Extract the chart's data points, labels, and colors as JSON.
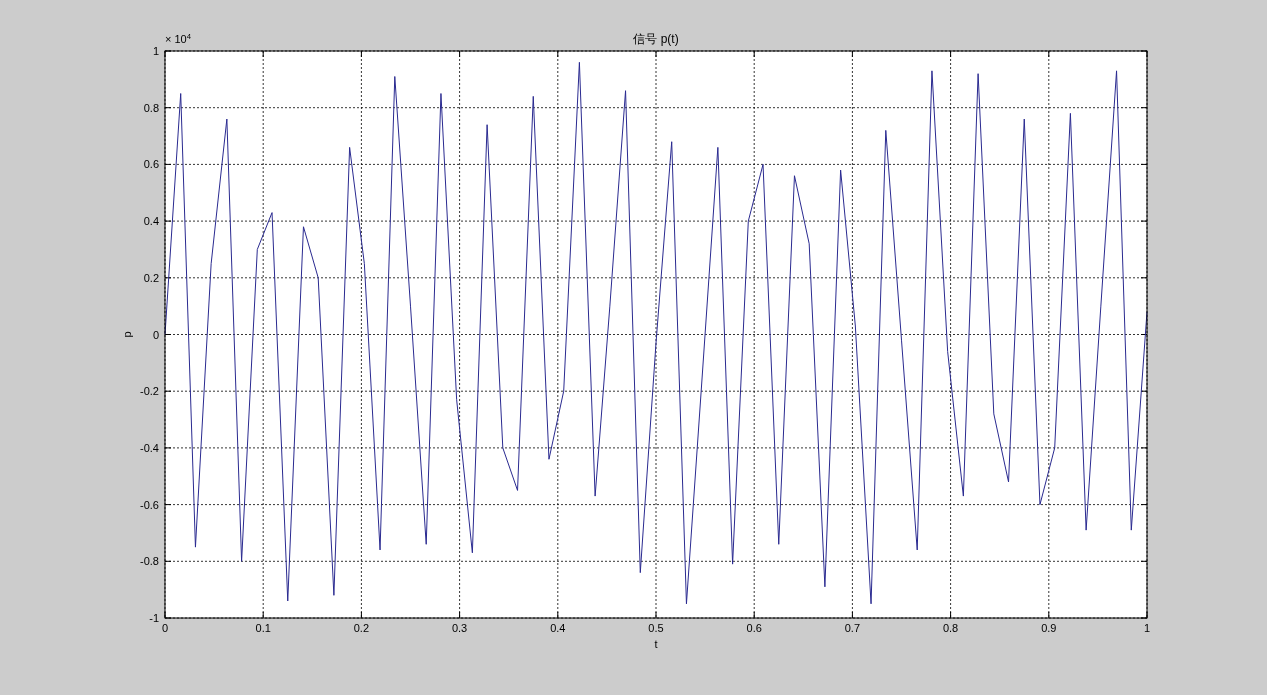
{
  "chart_data": {
    "type": "line",
    "title": "信号 p(t)",
    "xlabel": "t",
    "ylabel": "p",
    "annotations": [
      "× 10$^{4}$"
    ],
    "x": [
      0,
      0.016,
      0.031,
      0.047,
      0.063,
      0.078,
      0.094,
      0.109,
      0.125,
      0.141,
      0.156,
      0.172,
      0.188,
      0.203,
      0.219,
      0.234,
      0.25,
      0.266,
      0.281,
      0.297,
      0.313,
      0.328,
      0.344,
      0.359,
      0.375,
      0.391,
      0.406,
      0.422,
      0.438,
      0.453,
      0.469,
      0.484,
      0.5,
      0.516,
      0.531,
      0.547,
      0.563,
      0.578,
      0.594,
      0.609,
      0.625,
      0.641,
      0.656,
      0.672,
      0.688,
      0.703,
      0.719,
      0.734,
      0.75,
      0.766,
      0.781,
      0.797,
      0.813,
      0.828,
      0.844,
      0.859,
      0.875,
      0.891,
      0.906,
      0.922,
      0.938,
      0.953,
      0.969,
      0.984,
      1
    ],
    "series": [
      {
        "color": "#2a2a90",
        "values": [
          0,
          0.85,
          -0.75,
          0.25,
          0.76,
          -0.8,
          0.3,
          0.43,
          -0.94,
          0.38,
          0.2,
          -0.92,
          0.66,
          0.25,
          -0.76,
          0.91,
          0.1,
          -0.74,
          0.85,
          -0.23,
          -0.77,
          0.74,
          -0.4,
          -0.55,
          0.84,
          -0.44,
          -0.2,
          0.96,
          -0.57,
          0.1,
          0.86,
          -0.84,
          -0.03,
          0.68,
          -0.95,
          -0.15,
          0.66,
          -0.81,
          0.4,
          0.6,
          -0.74,
          0.56,
          0.32,
          -0.89,
          0.58,
          0.03,
          -0.95,
          0.72,
          -0.02,
          -0.76,
          0.93,
          -0.06,
          -0.57,
          0.92,
          -0.28,
          -0.52,
          0.76,
          -0.6,
          -0.4,
          0.78,
          -0.69,
          0.1,
          0.93,
          -0.69,
          0.08
        ]
      }
    ],
    "xlim": [
      0,
      1
    ],
    "ylim": [
      -1,
      1
    ],
    "xticks": [
      0,
      0.1,
      0.2,
      0.3,
      0.4,
      0.5,
      0.6,
      0.7,
      0.8,
      0.9,
      1
    ],
    "yticks": [
      -1,
      -0.8,
      -0.6,
      -0.4,
      -0.2,
      0,
      0.2,
      0.4,
      0.6,
      0.8,
      1
    ],
    "grid": true,
    "line_style": "solid",
    "marker": "none"
  }
}
